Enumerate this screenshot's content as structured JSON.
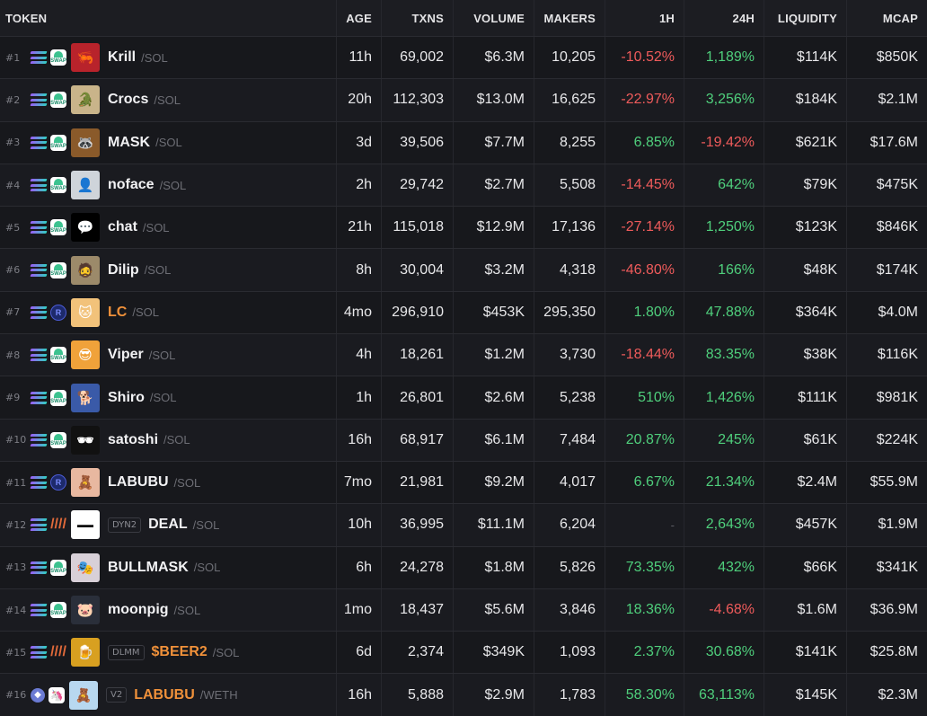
{
  "headers": {
    "token": "TOKEN",
    "age": "AGE",
    "txns": "TXNS",
    "volume": "VOLUME",
    "makers": "MAKERS",
    "h1": "1H",
    "h24": "24H",
    "liquidity": "LIQUIDITY",
    "mcap": "MCAP"
  },
  "colors": {
    "positive": "#4fcf7c",
    "negative": "#ef5b5b",
    "orange": "#f0913a"
  },
  "rows": [
    {
      "rank": "#1",
      "chain": "solana-icon",
      "dex": "swap",
      "dex_label": "SWAP",
      "avatar": "🦐",
      "avatar_bg": "#b8232b",
      "badge": "",
      "symbol": "Krill",
      "sym_color": "",
      "quote": "/SOL",
      "age": "11h",
      "txns": "69,002",
      "volume": "$6.3M",
      "makers": "10,205",
      "h1": "-10.52%",
      "h1_sign": "neg",
      "h24": "1,189%",
      "h24_sign": "pos",
      "liquidity": "$114K",
      "mcap": "$850K"
    },
    {
      "rank": "#2",
      "chain": "solana-icon",
      "dex": "swap",
      "dex_label": "SWAP",
      "avatar": "🐊",
      "avatar_bg": "#c9b48a",
      "badge": "",
      "symbol": "Crocs",
      "sym_color": "",
      "quote": "/SOL",
      "age": "20h",
      "txns": "112,303",
      "volume": "$13.0M",
      "makers": "16,625",
      "h1": "-22.97%",
      "h1_sign": "neg",
      "h24": "3,256%",
      "h24_sign": "pos",
      "liquidity": "$184K",
      "mcap": "$2.1M"
    },
    {
      "rank": "#3",
      "chain": "solana-icon",
      "dex": "swap",
      "dex_label": "SWAP",
      "avatar": "🦝",
      "avatar_bg": "#8a5a2a",
      "badge": "",
      "symbol": "MASK",
      "sym_color": "",
      "quote": "/SOL",
      "age": "3d",
      "txns": "39,506",
      "volume": "$7.7M",
      "makers": "8,255",
      "h1": "6.85%",
      "h1_sign": "pos",
      "h24": "-19.42%",
      "h24_sign": "neg",
      "liquidity": "$621K",
      "mcap": "$17.6M"
    },
    {
      "rank": "#4",
      "chain": "solana-icon",
      "dex": "swap",
      "dex_label": "SWAP",
      "avatar": "👤",
      "avatar_bg": "#cfd4da",
      "badge": "",
      "symbol": "noface",
      "sym_color": "",
      "quote": "/SOL",
      "age": "2h",
      "txns": "29,742",
      "volume": "$2.7M",
      "makers": "5,508",
      "h1": "-14.45%",
      "h1_sign": "neg",
      "h24": "642%",
      "h24_sign": "pos",
      "liquidity": "$79K",
      "mcap": "$475K"
    },
    {
      "rank": "#5",
      "chain": "solana-icon",
      "dex": "swap",
      "dex_label": "SWAP",
      "avatar": "💬",
      "avatar_bg": "#000000",
      "badge": "",
      "symbol": "chat",
      "sym_color": "",
      "quote": "/SOL",
      "age": "21h",
      "txns": "115,018",
      "volume": "$12.9M",
      "makers": "17,136",
      "h1": "-27.14%",
      "h1_sign": "neg",
      "h24": "1,250%",
      "h24_sign": "pos",
      "liquidity": "$123K",
      "mcap": "$846K"
    },
    {
      "rank": "#6",
      "chain": "solana-icon",
      "dex": "swap",
      "dex_label": "SWAP",
      "avatar": "🧔",
      "avatar_bg": "#9c8a6a",
      "badge": "",
      "symbol": "Dilip",
      "sym_color": "",
      "quote": "/SOL",
      "age": "8h",
      "txns": "30,004",
      "volume": "$3.2M",
      "makers": "4,318",
      "h1": "-46.80%",
      "h1_sign": "neg",
      "h24": "166%",
      "h24_sign": "pos",
      "liquidity": "$48K",
      "mcap": "$174K"
    },
    {
      "rank": "#7",
      "chain": "solana-icon",
      "dex": "ray",
      "dex_label": "R",
      "avatar": "🐱",
      "avatar_bg": "#f2c27a",
      "badge": "",
      "symbol": "LC",
      "sym_color": "orange",
      "quote": "/SOL",
      "age": "4mo",
      "txns": "296,910",
      "volume": "$453K",
      "makers": "295,350",
      "h1": "1.80%",
      "h1_sign": "pos",
      "h24": "47.88%",
      "h24_sign": "pos",
      "liquidity": "$364K",
      "mcap": "$4.0M"
    },
    {
      "rank": "#8",
      "chain": "solana-icon",
      "dex": "swap",
      "dex_label": "SWAP",
      "avatar": "😎",
      "avatar_bg": "#f0a23a",
      "badge": "",
      "symbol": "Viper",
      "sym_color": "",
      "quote": "/SOL",
      "age": "4h",
      "txns": "18,261",
      "volume": "$1.2M",
      "makers": "3,730",
      "h1": "-18.44%",
      "h1_sign": "neg",
      "h24": "83.35%",
      "h24_sign": "pos",
      "liquidity": "$38K",
      "mcap": "$116K"
    },
    {
      "rank": "#9",
      "chain": "solana-icon",
      "dex": "swap",
      "dex_label": "SWAP",
      "avatar": "🐕",
      "avatar_bg": "#3a5aa8",
      "badge": "",
      "symbol": "Shiro",
      "sym_color": "",
      "quote": "/SOL",
      "age": "1h",
      "txns": "26,801",
      "volume": "$2.6M",
      "makers": "5,238",
      "h1": "510%",
      "h1_sign": "pos",
      "h24": "1,426%",
      "h24_sign": "pos",
      "liquidity": "$111K",
      "mcap": "$981K"
    },
    {
      "rank": "#10",
      "chain": "solana-icon",
      "dex": "swap",
      "dex_label": "SWAP",
      "avatar": "🕶",
      "avatar_bg": "#111111",
      "badge": "",
      "symbol": "satoshi",
      "sym_color": "",
      "quote": "/SOL",
      "age": "16h",
      "txns": "68,917",
      "volume": "$6.1M",
      "makers": "7,484",
      "h1": "20.87%",
      "h1_sign": "pos",
      "h24": "245%",
      "h24_sign": "pos",
      "liquidity": "$61K",
      "mcap": "$224K"
    },
    {
      "rank": "#11",
      "chain": "solana-icon",
      "dex": "ray",
      "dex_label": "R",
      "avatar": "🧸",
      "avatar_bg": "#e8b8a0",
      "badge": "",
      "symbol": "LABUBU",
      "sym_color": "",
      "quote": "/SOL",
      "age": "7mo",
      "txns": "21,981",
      "volume": "$9.2M",
      "makers": "4,017",
      "h1": "6.67%",
      "h1_sign": "pos",
      "h24": "21.34%",
      "h24_sign": "pos",
      "liquidity": "$2.4M",
      "mcap": "$55.9M"
    },
    {
      "rank": "#12",
      "chain": "solana-icon",
      "dex": "met",
      "dex_label": "////",
      "avatar": "▬▬",
      "avatar_bg": "#ffffff",
      "badge": "DYN2",
      "symbol": "DEAL",
      "sym_color": "",
      "quote": "/SOL",
      "age": "10h",
      "txns": "36,995",
      "volume": "$11.1M",
      "makers": "6,204",
      "h1": "-",
      "h1_sign": "dash",
      "h24": "2,643%",
      "h24_sign": "pos",
      "liquidity": "$457K",
      "mcap": "$1.9M"
    },
    {
      "rank": "#13",
      "chain": "solana-icon",
      "dex": "swap",
      "dex_label": "SWAP",
      "avatar": "🎭",
      "avatar_bg": "#d8d0d8",
      "badge": "",
      "symbol": "BULLMASK",
      "sym_color": "",
      "quote": "/SOL",
      "age": "6h",
      "txns": "24,278",
      "volume": "$1.8M",
      "makers": "5,826",
      "h1": "73.35%",
      "h1_sign": "pos",
      "h24": "432%",
      "h24_sign": "pos",
      "liquidity": "$66K",
      "mcap": "$341K"
    },
    {
      "rank": "#14",
      "chain": "solana-icon",
      "dex": "swap",
      "dex_label": "SWAP",
      "avatar": "🐷",
      "avatar_bg": "#2a2f3a",
      "badge": "",
      "symbol": "moonpig",
      "sym_color": "",
      "quote": "/SOL",
      "age": "1mo",
      "txns": "18,437",
      "volume": "$5.6M",
      "makers": "3,846",
      "h1": "18.36%",
      "h1_sign": "pos",
      "h24": "-4.68%",
      "h24_sign": "neg",
      "liquidity": "$1.6M",
      "mcap": "$36.9M"
    },
    {
      "rank": "#15",
      "chain": "solana-icon",
      "dex": "met",
      "dex_label": "////",
      "avatar": "🍺",
      "avatar_bg": "#d8a020",
      "badge": "DLMM",
      "symbol": "$BEER2",
      "sym_color": "orange",
      "quote": "/SOL",
      "age": "6d",
      "txns": "2,374",
      "volume": "$349K",
      "makers": "1,093",
      "h1": "2.37%",
      "h1_sign": "pos",
      "h24": "30.68%",
      "h24_sign": "pos",
      "liquidity": "$141K",
      "mcap": "$25.8M"
    },
    {
      "rank": "#16",
      "chain": "ethereum-icon",
      "dex": "uni",
      "dex_label": "🦄",
      "avatar": "🧸",
      "avatar_bg": "#b8d8f0",
      "badge": "V2",
      "symbol": "LABUBU",
      "sym_color": "orange",
      "quote": "/WETH",
      "age": "16h",
      "txns": "5,888",
      "volume": "$2.9M",
      "makers": "1,783",
      "h1": "58.30%",
      "h1_sign": "pos",
      "h24": "63,113%",
      "h24_sign": "pos",
      "liquidity": "$145K",
      "mcap": "$2.3M"
    }
  ]
}
